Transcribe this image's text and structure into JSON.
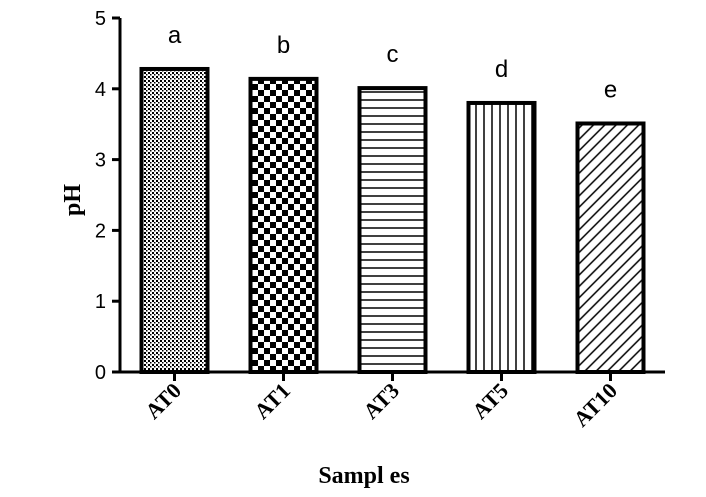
{
  "chart_data": {
    "type": "bar",
    "categories": [
      "AT0",
      "AT1",
      "AT3",
      "AT5",
      "AT10"
    ],
    "values": [
      4.28,
      4.14,
      4.01,
      3.8,
      3.51
    ],
    "significance_labels": [
      "a",
      "b",
      "c",
      "d",
      "e"
    ],
    "patterns": [
      "dots",
      "checker",
      "horizontal-lines",
      "vertical-lines",
      "diagonal-lines"
    ],
    "title": "",
    "xlabel": "Sampl es",
    "ylabel": "pH",
    "ylim": [
      0,
      5
    ],
    "yticks": [
      "0",
      "1",
      "2",
      "3",
      "4",
      "5"
    ],
    "grid": false,
    "bar_fill": "#ffffff",
    "bar_stroke": "#000000"
  }
}
